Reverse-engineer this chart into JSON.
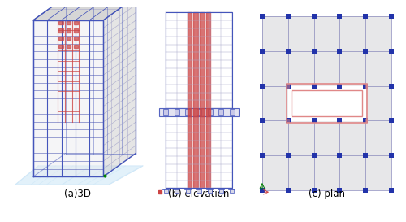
{
  "fig_width": 5.0,
  "fig_height": 2.73,
  "dpi": 100,
  "bg_color": "#ffffff",
  "label_a": "(a)3D",
  "label_b": "(b) elevation",
  "label_c": "(c) plan",
  "label_fontsize": 8.5,
  "grid_color": "#aaaacc",
  "red_color": "#cc4444",
  "red_light": "#e08888",
  "blue_node_color": "#2233aa",
  "blue_line_color": "#4455bb",
  "light_blue": "#d0e8f8",
  "gray_fill": "#d4d4d8",
  "white": "#ffffff",
  "panel_line": "#8888bb"
}
